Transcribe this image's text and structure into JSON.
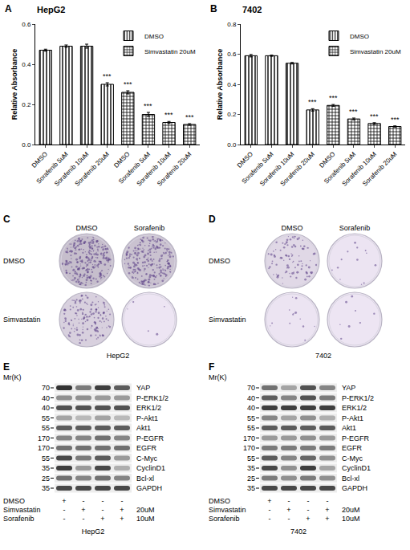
{
  "chart_data": [
    {
      "panel": "A",
      "type": "bar",
      "title": "HepG2",
      "y_label": "Relative Absorbance",
      "categories": [
        "DMSO",
        "Sorafenib 5uM",
        "Sorafenib 10uM",
        "Sorafenib 20uM",
        "DMSO",
        "Sorafenib 5uM",
        "Sorafenib 10uM",
        "Sorafenib 20uM"
      ],
      "ylim": [
        0,
        0.6
      ],
      "yticks": [
        {
          "value": 0,
          "label": "0.0"
        },
        0.2,
        0.4,
        0.6
      ],
      "legend": "top right",
      "series": [
        {
          "name": "DMSO",
          "marker": "stripes",
          "color": "#000000",
          "values": [
            0.47,
            0.49,
            0.49,
            0.3,
            null,
            null,
            null,
            null
          ],
          "errors": [
            0.005,
            0.006,
            0.01,
            0.008,
            null,
            null,
            null,
            null
          ]
        },
        {
          "name": "Simvastatin 20uM",
          "marker": "checks",
          "color": "#000000",
          "values": [
            null,
            null,
            null,
            null,
            0.26,
            0.15,
            0.11,
            0.1
          ],
          "errors": [
            null,
            null,
            null,
            null,
            0.008,
            0.01,
            0.005,
            0.004
          ]
        }
      ],
      "annotations": [
        {
          "category_index": 3,
          "text": "***"
        },
        {
          "category_index": 4,
          "text": "***"
        },
        {
          "category_index": 5,
          "text": "***"
        },
        {
          "category_index": 6,
          "text": "***"
        },
        {
          "category_index": 7,
          "text": "***"
        }
      ]
    },
    {
      "panel": "B",
      "type": "bar",
      "title": "7402",
      "y_label": "Relative Absorbance",
      "categories": [
        "DMSO",
        "Sorafenib 5uM",
        "Sorafenib 10uM",
        "Sorafenib 20uM",
        "DMSO",
        "Sorafenib 5uM",
        "Sorafenib 10uM",
        "Sorafenib 20uM"
      ],
      "ylim": [
        0,
        0.8
      ],
      "yticks": [
        {
          "value": 0,
          "label": "0.0"
        },
        0.2,
        0.4,
        0.6,
        0.8
      ],
      "legend": "top right",
      "series": [
        {
          "name": "DMSO",
          "marker": "stripes",
          "color": "#000000",
          "values": [
            0.59,
            0.59,
            0.54,
            0.23,
            null,
            null,
            null,
            null
          ],
          "errors": [
            0.008,
            0.004,
            0.005,
            0.008,
            null,
            null,
            null,
            null
          ]
        },
        {
          "name": "Simvastatin 20uM",
          "marker": "checks",
          "color": "#000000",
          "values": [
            null,
            null,
            null,
            null,
            0.26,
            0.17,
            0.14,
            0.12
          ],
          "errors": [
            null,
            null,
            null,
            null,
            0.006,
            0.006,
            0.005,
            0.004
          ]
        }
      ],
      "annotations": [
        {
          "category_index": 3,
          "text": "***"
        },
        {
          "category_index": 4,
          "text": "***"
        },
        {
          "category_index": 5,
          "text": "***"
        },
        {
          "category_index": 6,
          "text": "***"
        },
        {
          "category_index": 7,
          "text": "***"
        }
      ]
    }
  ],
  "plates": [
    {
      "panel": "C",
      "columns": [
        "DMSO",
        "Sorafenib"
      ],
      "rows": [
        "DMSO",
        "Simvastatin"
      ],
      "caption": "HepG2"
    },
    {
      "panel": "D",
      "columns": [
        "DMSO",
        "Sorafenib"
      ],
      "rows": [
        "DMSO",
        "Simvastatin"
      ],
      "caption": "7402"
    }
  ],
  "blots": [
    {
      "panel": "E",
      "mass_label": "Mr(K)",
      "markers": [
        70,
        40,
        40,
        55,
        55,
        170,
        170,
        55,
        35,
        25,
        35
      ],
      "proteins": [
        "YAP",
        "P-ERK1/2",
        "ERK1/2",
        "P-Akt1",
        "Akt1",
        "P-EGFR",
        "EGFR",
        "C-Myc",
        "CyclinD1",
        "Bcl-xl",
        "GAPDH"
      ],
      "treatments": [
        {
          "name": "DMSO",
          "signs": [
            "+",
            "-",
            "-",
            "-"
          ]
        },
        {
          "name": "Simvastatin",
          "signs": [
            "-",
            "+",
            "-",
            "+"
          ],
          "dose": "20uM"
        },
        {
          "name": "Sorafenib",
          "signs": [
            "-",
            "-",
            "+",
            "+"
          ],
          "dose": "10uM"
        }
      ],
      "caption": "HepG2"
    },
    {
      "panel": "F",
      "mass_label": "Mr(K)",
      "markers": [
        70,
        40,
        40,
        55,
        55,
        170,
        170,
        55,
        35,
        25,
        35
      ],
      "proteins": [
        "YAP",
        "P-ERK1/2",
        "ERK1/2",
        "P-Akt1",
        "Akt1",
        "P-EGFR",
        "EGFR",
        "C-Myc",
        "CyclinD1",
        "Bcl-xl",
        "GAPDH"
      ],
      "treatments": [
        {
          "name": "DMSO",
          "signs": [
            "+",
            "-",
            "-",
            "-"
          ]
        },
        {
          "name": "Simvastatin",
          "signs": [
            "-",
            "+",
            "-",
            "+"
          ],
          "dose": "20uM"
        },
        {
          "name": "Sorafenib",
          "signs": [
            "-",
            "-",
            "+",
            "+"
          ],
          "dose": "10uM"
        }
      ],
      "caption": "7402"
    }
  ]
}
